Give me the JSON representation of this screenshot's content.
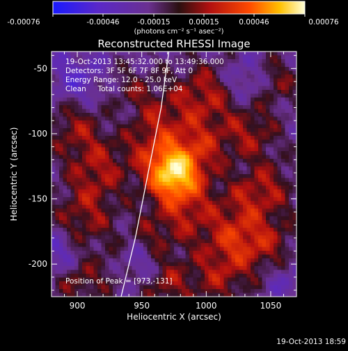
{
  "colorbar": {
    "ticks": [
      "-0.00076",
      "-0.00046",
      "-0.00015",
      "0.00015",
      "0.00046",
      "0.00076"
    ],
    "unit_label": "(photons cm⁻² s⁻¹ asec⁻²)"
  },
  "chart_data": {
    "type": "heatmap",
    "title": "Reconstructed RHESSI Image",
    "xlabel": "Heliocentric X (arcsec)",
    "ylabel": "Heliocentric Y (arcsec)",
    "xlim": [
      880,
      1070
    ],
    "ylim": [
      -225,
      -37
    ],
    "x_ticks": [
      "900",
      "950",
      "1000",
      "1050"
    ],
    "y_ticks": [
      "-50",
      "-100",
      "-150",
      "-200"
    ],
    "x_tick_values": [
      900,
      950,
      1000,
      1050
    ],
    "y_tick_values": [
      -50,
      -100,
      -150,
      -200
    ],
    "colorbar_range": [
      -0.00076,
      0.00076
    ],
    "peak": {
      "x": 973,
      "y": -131,
      "value": 0.00076
    },
    "annotations": [
      "19-Oct-2013 13:45:32.000 to 13:49:36.000",
      "Detectors: 3F 5F 6F 7F 8F 9F, Att 0",
      "Energy Range: 12.0 - 25.0 keV",
      "Clean     Total counts: 1.06E+04"
    ],
    "peak_label": "Position of Peak = [973,-131]",
    "limb_curve": {
      "x": [
        934,
        945,
        955,
        965,
        971
      ],
      "y": [
        -225,
        -180,
        -130,
        -80,
        -37
      ]
    }
  },
  "footer": {
    "timestamp": "19-Oct-2013 18:59"
  }
}
